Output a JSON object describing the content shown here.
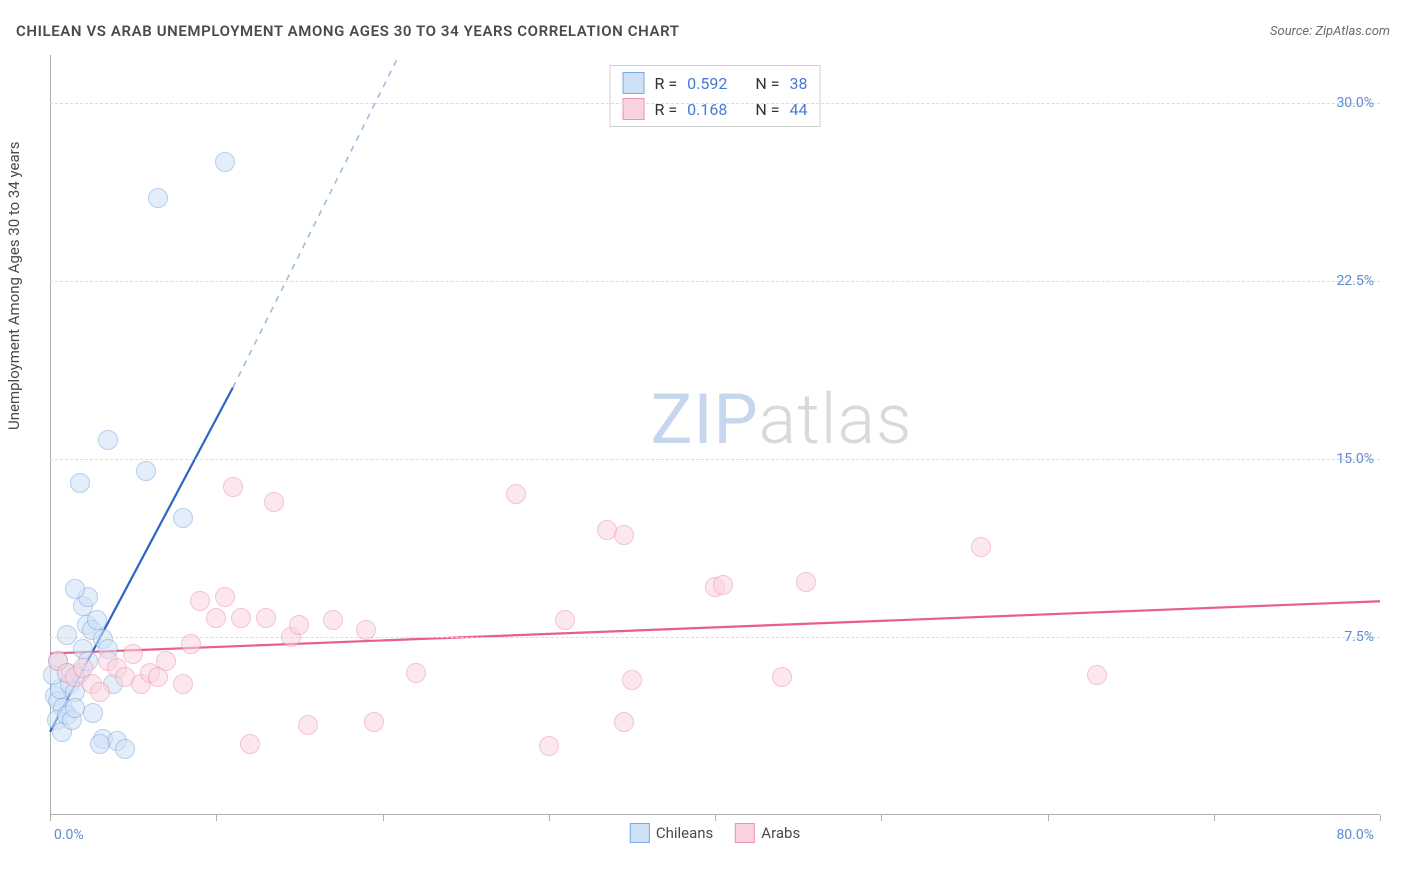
{
  "header": {
    "title": "CHILEAN VS ARAB UNEMPLOYMENT AMONG AGES 30 TO 34 YEARS CORRELATION CHART",
    "source": "Source: ZipAtlas.com"
  },
  "chart": {
    "type": "scatter",
    "ylabel": "Unemployment Among Ages 30 to 34 years",
    "watermark_zip": "ZIP",
    "watermark_atlas": "atlas",
    "background_color": "#ffffff",
    "grid_color": "#dcdcdc",
    "axis_color": "#b0b0b0",
    "tick_label_color": "#5b8bd4",
    "xlim": [
      0,
      80
    ],
    "ylim": [
      0,
      32
    ],
    "ytick_step": 7.5,
    "yticks": [
      7.5,
      15.0,
      22.5,
      30.0
    ],
    "ytick_labels": [
      "7.5%",
      "15.0%",
      "22.5%",
      "30.0%"
    ],
    "xtick_positions": [
      0,
      10,
      20,
      30,
      40,
      50,
      60,
      70,
      80
    ],
    "xaxis_label_left": "0.0%",
    "xaxis_label_right": "80.0%",
    "marker_radius": 9,
    "marker_stroke_width": 1,
    "series": [
      {
        "name": "Chileans",
        "fill": "#cfe1f7",
        "stroke": "#7aa8e0",
        "fill_opacity": 0.55,
        "trend": {
          "solid": {
            "x1": 0,
            "y1": 3.5,
            "x2": 11,
            "y2": 18.0,
            "stroke": "#2f66c4",
            "width": 2.2
          },
          "dashed": {
            "x1": 11,
            "y1": 18.0,
            "x2": 21,
            "y2": 32.0,
            "stroke": "#9dbbe8",
            "width": 1.6,
            "dash": "6,6"
          }
        },
        "points": [
          [
            0.3,
            5.0
          ],
          [
            0.5,
            4.8
          ],
          [
            0.6,
            5.3
          ],
          [
            0.8,
            4.5
          ],
          [
            1.0,
            6.0
          ],
          [
            1.2,
            5.5
          ],
          [
            0.4,
            4.0
          ],
          [
            0.7,
            3.5
          ],
          [
            1.0,
            4.2
          ],
          [
            1.3,
            4.0
          ],
          [
            1.5,
            5.2
          ],
          [
            1.8,
            6.0
          ],
          [
            2.0,
            7.0
          ],
          [
            2.2,
            8.0
          ],
          [
            2.5,
            7.8
          ],
          [
            2.0,
            8.8
          ],
          [
            2.3,
            9.2
          ],
          [
            2.8,
            8.2
          ],
          [
            3.2,
            7.4
          ],
          [
            3.5,
            7.0
          ],
          [
            3.2,
            3.2
          ],
          [
            4.0,
            3.1
          ],
          [
            4.5,
            2.8
          ],
          [
            3.0,
            3.0
          ],
          [
            3.8,
            5.5
          ],
          [
            1.5,
            9.5
          ],
          [
            1.8,
            14.0
          ],
          [
            5.8,
            14.5
          ],
          [
            3.5,
            15.8
          ],
          [
            8.0,
            12.5
          ],
          [
            6.5,
            26.0
          ],
          [
            10.5,
            27.5
          ],
          [
            2.3,
            6.5
          ],
          [
            1.0,
            7.6
          ],
          [
            0.5,
            6.5
          ],
          [
            1.5,
            4.5
          ],
          [
            2.6,
            4.3
          ],
          [
            0.2,
            5.9
          ]
        ]
      },
      {
        "name": "Arabs",
        "fill": "#f9d4df",
        "stroke": "#ea94ae",
        "fill_opacity": 0.55,
        "trend": {
          "solid": {
            "x1": 0,
            "y1": 6.8,
            "x2": 80,
            "y2": 9.0,
            "stroke": "#e85f8a",
            "width": 2.2
          }
        },
        "points": [
          [
            0.5,
            6.5
          ],
          [
            1.0,
            6.0
          ],
          [
            1.5,
            5.8
          ],
          [
            2.0,
            6.2
          ],
          [
            2.5,
            5.5
          ],
          [
            3.0,
            5.2
          ],
          [
            3.5,
            6.5
          ],
          [
            4.0,
            6.2
          ],
          [
            4.5,
            5.8
          ],
          [
            5.0,
            6.8
          ],
          [
            5.5,
            5.5
          ],
          [
            6.0,
            6.0
          ],
          [
            6.5,
            5.8
          ],
          [
            7.0,
            6.5
          ],
          [
            8.0,
            5.5
          ],
          [
            8.5,
            7.2
          ],
          [
            9.0,
            9.0
          ],
          [
            10.0,
            8.3
          ],
          [
            10.5,
            9.2
          ],
          [
            11.0,
            13.8
          ],
          [
            11.5,
            8.3
          ],
          [
            12.0,
            3.0
          ],
          [
            13.0,
            8.3
          ],
          [
            13.5,
            13.2
          ],
          [
            14.5,
            7.5
          ],
          [
            15.0,
            8.0
          ],
          [
            15.5,
            3.8
          ],
          [
            17.0,
            8.2
          ],
          [
            19.0,
            7.8
          ],
          [
            19.5,
            3.9
          ],
          [
            22.0,
            6.0
          ],
          [
            28.0,
            13.5
          ],
          [
            30.0,
            2.9
          ],
          [
            31.0,
            8.2
          ],
          [
            33.5,
            12.0
          ],
          [
            34.5,
            3.9
          ],
          [
            34.5,
            11.8
          ],
          [
            35.0,
            5.7
          ],
          [
            40.0,
            9.6
          ],
          [
            44.0,
            5.8
          ],
          [
            45.5,
            9.8
          ],
          [
            56.0,
            11.3
          ],
          [
            63.0,
            5.9
          ],
          [
            40.5,
            9.7
          ]
        ]
      }
    ],
    "legend_top": {
      "rows": [
        {
          "swatch_fill": "#cfe1f7",
          "swatch_stroke": "#7aa8e0",
          "r_label": "R =",
          "r_value": "0.592",
          "n_label": "N =",
          "n_value": "38"
        },
        {
          "swatch_fill": "#f9d4df",
          "swatch_stroke": "#ea94ae",
          "r_label": "R =",
          "r_value": "0.168",
          "n_label": "N =",
          "n_value": "44"
        }
      ]
    },
    "legend_bottom": [
      {
        "swatch_fill": "#cfe1f7",
        "swatch_stroke": "#7aa8e0",
        "label": "Chileans"
      },
      {
        "swatch_fill": "#f9d4df",
        "swatch_stroke": "#ea94ae",
        "label": "Arabs"
      }
    ]
  }
}
